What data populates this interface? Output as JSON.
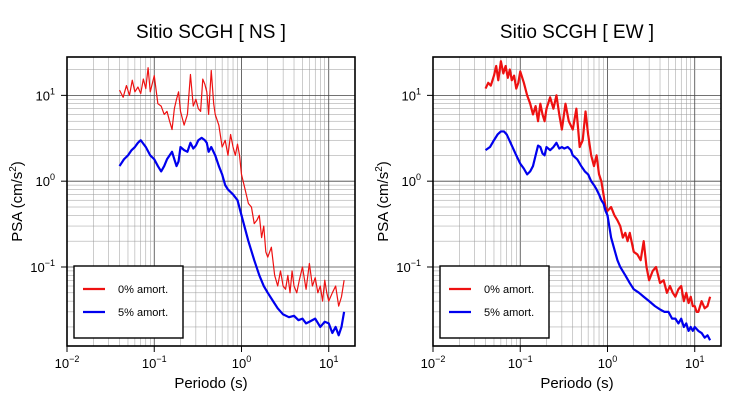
{
  "chart_data": [
    {
      "type": "line",
      "title": "Sitio SCGH [ NS ]",
      "xlabel": "Periodo (s)",
      "ylabel": "PSA (cm/s²)",
      "ylabel_main": "PSA (cm/s",
      "ylabel_sup": "2",
      "ylabel_tail": ")",
      "x_scale": "log",
      "y_scale": "log",
      "xlim": [
        0.01,
        20
      ],
      "ylim": [
        0.012,
        28
      ],
      "x_ticks": [
        {
          "value": 0.01,
          "base": "10",
          "exp": "−2"
        },
        {
          "value": 0.1,
          "base": "10",
          "exp": "−1"
        },
        {
          "value": 1,
          "base": "10",
          "exp": "0"
        },
        {
          "value": 10,
          "base": "10",
          "exp": "1"
        }
      ],
      "y_ticks": [
        {
          "value": 0.1,
          "base": "10",
          "exp": "−1"
        },
        {
          "value": 1,
          "base": "10",
          "exp": "0"
        },
        {
          "value": 10,
          "base": "10",
          "exp": "1"
        }
      ],
      "grid": true,
      "legend_position": "bottom-left",
      "series": [
        {
          "name": "0% amort.",
          "color": "#ee1111",
          "stroke": "thin",
          "x": [
            0.04,
            0.044,
            0.048,
            0.052,
            0.056,
            0.06,
            0.065,
            0.07,
            0.075,
            0.08,
            0.085,
            0.09,
            0.1,
            0.11,
            0.12,
            0.13,
            0.14,
            0.15,
            0.16,
            0.17,
            0.18,
            0.19,
            0.2,
            0.22,
            0.24,
            0.26,
            0.28,
            0.3,
            0.32,
            0.34,
            0.36,
            0.38,
            0.4,
            0.42,
            0.45,
            0.48,
            0.5,
            0.55,
            0.6,
            0.65,
            0.7,
            0.75,
            0.8,
            0.85,
            0.9,
            0.95,
            1.0,
            1.1,
            1.2,
            1.3,
            1.4,
            1.5,
            1.6,
            1.7,
            1.8,
            1.9,
            2.0,
            2.2,
            2.4,
            2.6,
            2.8,
            3.0,
            3.2,
            3.4,
            3.6,
            3.8,
            4.0,
            4.3,
            4.6,
            5.0,
            5.5,
            6.0,
            6.5,
            7.0,
            7.5,
            8.0,
            8.5,
            9.0,
            9.5,
            10.0,
            11.0,
            12.0,
            13.0,
            14.0,
            15.0
          ],
          "y": [
            11.5,
            9.5,
            13.0,
            10.0,
            15.0,
            11.0,
            12.5,
            10.5,
            15.5,
            12.0,
            21.0,
            11.0,
            17.0,
            8.0,
            7.5,
            6.0,
            6.5,
            5.0,
            4.0,
            7.0,
            9.0,
            11.0,
            6.5,
            4.5,
            6.0,
            17.5,
            7.5,
            9.0,
            7.0,
            6.5,
            15.5,
            13.5,
            11.0,
            6.0,
            19.5,
            8.0,
            6.0,
            4.5,
            2.5,
            3.0,
            2.0,
            3.5,
            2.5,
            2.0,
            2.7,
            2.0,
            1.2,
            0.8,
            0.55,
            0.5,
            0.32,
            0.35,
            0.4,
            0.22,
            0.3,
            0.15,
            0.13,
            0.17,
            0.08,
            0.06,
            0.09,
            0.06,
            0.055,
            0.08,
            0.05,
            0.09,
            0.06,
            0.05,
            0.07,
            0.1,
            0.055,
            0.11,
            0.06,
            0.075,
            0.05,
            0.06,
            0.04,
            0.07,
            0.05,
            0.04,
            0.05,
            0.06,
            0.035,
            0.045,
            0.07
          ]
        },
        {
          "name": "5% amort.",
          "color": "#0000ee",
          "stroke": "thick",
          "x": [
            0.04,
            0.045,
            0.05,
            0.055,
            0.06,
            0.065,
            0.07,
            0.08,
            0.09,
            0.1,
            0.11,
            0.12,
            0.13,
            0.14,
            0.15,
            0.16,
            0.17,
            0.18,
            0.19,
            0.2,
            0.22,
            0.24,
            0.26,
            0.28,
            0.3,
            0.32,
            0.35,
            0.38,
            0.4,
            0.42,
            0.45,
            0.5,
            0.55,
            0.6,
            0.65,
            0.7,
            0.8,
            0.9,
            1.0,
            1.2,
            1.4,
            1.6,
            1.8,
            2.0,
            2.3,
            2.6,
            3.0,
            3.5,
            4.0,
            4.5,
            5.0,
            5.5,
            6.0,
            7.0,
            8.0,
            9.0,
            10.0,
            11.0,
            12.0,
            13.0,
            14.0,
            15.0
          ],
          "y": [
            1.5,
            1.8,
            2.0,
            2.3,
            2.5,
            2.8,
            3.0,
            2.5,
            2.0,
            1.8,
            1.5,
            1.3,
            1.5,
            1.8,
            2.0,
            2.2,
            1.8,
            1.5,
            1.7,
            2.5,
            2.3,
            2.2,
            2.8,
            2.4,
            2.6,
            3.0,
            3.2,
            3.0,
            2.8,
            2.2,
            2.5,
            2.0,
            1.5,
            1.2,
            0.9,
            0.8,
            0.7,
            0.6,
            0.4,
            0.2,
            0.12,
            0.08,
            0.06,
            0.05,
            0.04,
            0.033,
            0.028,
            0.026,
            0.027,
            0.024,
            0.025,
            0.022,
            0.023,
            0.025,
            0.02,
            0.023,
            0.022,
            0.017,
            0.02,
            0.016,
            0.02,
            0.03
          ]
        }
      ]
    },
    {
      "type": "line",
      "title": "Sitio SCGH [ EW ]",
      "xlabel": "Periodo (s)",
      "ylabel": "PSA (cm/s²)",
      "ylabel_main": "PSA (cm/s",
      "ylabel_sup": "2",
      "ylabel_tail": ")",
      "x_scale": "log",
      "y_scale": "log",
      "xlim": [
        0.01,
        20
      ],
      "ylim": [
        0.012,
        28
      ],
      "x_ticks": [
        {
          "value": 0.01,
          "base": "10",
          "exp": "−2"
        },
        {
          "value": 0.1,
          "base": "10",
          "exp": "−1"
        },
        {
          "value": 1,
          "base": "10",
          "exp": "0"
        },
        {
          "value": 10,
          "base": "10",
          "exp": "1"
        }
      ],
      "y_ticks": [
        {
          "value": 0.1,
          "base": "10",
          "exp": "−1"
        },
        {
          "value": 1,
          "base": "10",
          "exp": "0"
        },
        {
          "value": 10,
          "base": "10",
          "exp": "1"
        }
      ],
      "grid": true,
      "legend_position": "bottom-left",
      "series": [
        {
          "name": "0% amort.",
          "color": "#ee1111",
          "stroke": "thick",
          "x": [
            0.04,
            0.043,
            0.046,
            0.05,
            0.053,
            0.056,
            0.06,
            0.064,
            0.068,
            0.072,
            0.076,
            0.08,
            0.085,
            0.09,
            0.095,
            0.1,
            0.11,
            0.12,
            0.13,
            0.14,
            0.15,
            0.16,
            0.17,
            0.18,
            0.19,
            0.2,
            0.22,
            0.24,
            0.26,
            0.28,
            0.3,
            0.33,
            0.36,
            0.4,
            0.44,
            0.48,
            0.52,
            0.56,
            0.6,
            0.65,
            0.7,
            0.75,
            0.8,
            0.85,
            0.9,
            0.95,
            1.0,
            1.1,
            1.2,
            1.3,
            1.4,
            1.5,
            1.6,
            1.7,
            1.8,
            2.0,
            2.2,
            2.4,
            2.6,
            2.8,
            3.0,
            3.3,
            3.6,
            4.0,
            4.4,
            4.8,
            5.2,
            5.6,
            6.0,
            6.5,
            7.0,
            7.5,
            8.0,
            8.5,
            9.0,
            9.5,
            10.0,
            10.5,
            11.0,
            12.0,
            13.0,
            14.0,
            15.0
          ],
          "y": [
            12.0,
            14.0,
            13.0,
            17.0,
            22.0,
            15.0,
            25.0,
            18.0,
            22.0,
            16.0,
            20.0,
            15.0,
            17.0,
            12.0,
            14.0,
            19.0,
            14.0,
            10.0,
            8.0,
            6.0,
            7.5,
            5.0,
            8.0,
            6.0,
            5.0,
            7.0,
            9.5,
            7.0,
            10.0,
            6.0,
            4.0,
            8.0,
            5.0,
            4.0,
            7.0,
            2.5,
            3.0,
            6.5,
            3.5,
            2.0,
            1.5,
            2.0,
            1.2,
            1.0,
            0.7,
            0.5,
            0.45,
            0.5,
            0.4,
            0.35,
            0.3,
            0.22,
            0.25,
            0.2,
            0.25,
            0.15,
            0.14,
            0.12,
            0.2,
            0.1,
            0.07,
            0.09,
            0.1,
            0.065,
            0.07,
            0.05,
            0.06,
            0.05,
            0.045,
            0.055,
            0.06,
            0.04,
            0.05,
            0.038,
            0.045,
            0.035,
            0.035,
            0.03,
            0.03,
            0.04,
            0.033,
            0.035,
            0.045
          ]
        },
        {
          "name": "5% amort.",
          "color": "#0000ee",
          "stroke": "thick",
          "x": [
            0.04,
            0.045,
            0.05,
            0.055,
            0.06,
            0.065,
            0.07,
            0.08,
            0.09,
            0.1,
            0.11,
            0.12,
            0.13,
            0.14,
            0.15,
            0.16,
            0.17,
            0.18,
            0.19,
            0.2,
            0.22,
            0.24,
            0.26,
            0.28,
            0.3,
            0.32,
            0.35,
            0.38,
            0.4,
            0.45,
            0.5,
            0.55,
            0.6,
            0.65,
            0.7,
            0.75,
            0.8,
            0.85,
            0.9,
            0.95,
            1.0,
            1.1,
            1.2,
            1.3,
            1.4,
            1.6,
            1.8,
            2.0,
            2.3,
            2.6,
            3.0,
            3.5,
            4.0,
            4.5,
            5.0,
            5.5,
            6.0,
            6.5,
            7.0,
            7.5,
            8.0,
            8.5,
            9.0,
            9.5,
            10.0,
            11.0,
            12.0,
            13.0,
            14.0,
            15.0
          ],
          "y": [
            2.3,
            2.5,
            3.0,
            3.5,
            3.8,
            3.8,
            3.5,
            2.6,
            2.0,
            1.6,
            1.4,
            1.2,
            1.3,
            1.5,
            2.0,
            2.6,
            2.5,
            2.1,
            2.0,
            2.5,
            2.3,
            2.5,
            2.8,
            2.4,
            2.5,
            2.4,
            2.5,
            2.3,
            2.0,
            1.8,
            1.5,
            1.3,
            1.2,
            1.0,
            0.9,
            0.8,
            0.7,
            0.6,
            0.55,
            0.45,
            0.4,
            0.22,
            0.16,
            0.12,
            0.1,
            0.08,
            0.065,
            0.055,
            0.05,
            0.045,
            0.04,
            0.035,
            0.032,
            0.03,
            0.03,
            0.025,
            0.025,
            0.022,
            0.025,
            0.02,
            0.022,
            0.018,
            0.02,
            0.018,
            0.02,
            0.018,
            0.017,
            0.015,
            0.016,
            0.014
          ]
        }
      ]
    }
  ]
}
